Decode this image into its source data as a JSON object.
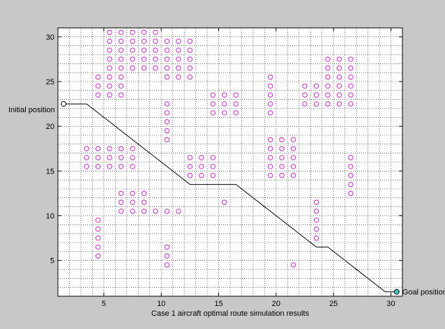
{
  "chart_data": {
    "type": "scatter",
    "xlabel": "Case 1 aircraft optimal route simulation results",
    "ylabel": "",
    "xlim": [
      1,
      31
    ],
    "ylim": [
      1,
      31
    ],
    "xticks": [
      5,
      10,
      15,
      20,
      25,
      30
    ],
    "yticks": [
      5,
      10,
      15,
      20,
      25,
      30
    ],
    "grid": true,
    "grid_style": "dotted",
    "annotations": {
      "start_label": "Initial position",
      "goal_label": "Goal position"
    },
    "start_point": [
      1.5,
      22.5
    ],
    "goal_point": [
      30.5,
      1.5
    ],
    "route": [
      [
        1.5,
        22.5
      ],
      [
        3.5,
        22.5
      ],
      [
        12.5,
        13.5
      ],
      [
        16.5,
        13.5
      ],
      [
        23.5,
        6.5
      ],
      [
        24.5,
        6.5
      ],
      [
        29.5,
        1.5
      ],
      [
        30.5,
        1.5
      ]
    ],
    "obstacle_color": "#e020e0",
    "route_color": "#000000",
    "start_color": "#ffffff",
    "goal_color": "#33cccc",
    "obstacle_groups": [
      {
        "xs": [
          6.5,
          7.5,
          8.5,
          9.5
        ],
        "ys": [
          26.5,
          27.5,
          28.5,
          29.5,
          30.5
        ]
      },
      {
        "xs": [
          5.5
        ],
        "ys": [
          26.5,
          27.5,
          28.5,
          29.5,
          30.5
        ]
      },
      {
        "xs": [
          10.5,
          11.5,
          12.5
        ],
        "ys": [
          25.5,
          26.5,
          27.5,
          28.5,
          29.5
        ]
      },
      {
        "xs": [
          4.5,
          5.5,
          6.5
        ],
        "ys": [
          23.5,
          24.5,
          25.5
        ]
      },
      {
        "xs": [
          10.5
        ],
        "ys": [
          18.5,
          19.5,
          20.5,
          21.5,
          22.5
        ]
      },
      {
        "xs": [
          14.5,
          15.5,
          16.5
        ],
        "ys": [
          21.5,
          22.5,
          23.5
        ]
      },
      {
        "xs": [
          19.5
        ],
        "ys": [
          21.5,
          22.5,
          23.5,
          24.5,
          25.5
        ]
      },
      {
        "xs": [
          22.5,
          23.5
        ],
        "ys": [
          22.5,
          23.5,
          24.5
        ]
      },
      {
        "xs": [
          24.5,
          25.5,
          26.5
        ],
        "ys": [
          22.5,
          23.5,
          24.5,
          25.5,
          26.5,
          27.5
        ]
      },
      {
        "xs": [
          3.5,
          4.5,
          5.5,
          6.5,
          7.5
        ],
        "ys": [
          15.5,
          16.5,
          17.5
        ]
      },
      {
        "xs": [
          12.5,
          13.5,
          14.5
        ],
        "ys": [
          14.5,
          15.5,
          16.5
        ]
      },
      {
        "xs": [
          19.5,
          20.5,
          21.5
        ],
        "ys": [
          14.5,
          15.5,
          16.5,
          17.5,
          18.5
        ]
      },
      {
        "xs": [
          26.5
        ],
        "ys": [
          12.5,
          13.5,
          14.5,
          15.5,
          16.5
        ]
      },
      {
        "xs": [
          6.5,
          7.5,
          8.5
        ],
        "ys": [
          10.5,
          11.5,
          12.5
        ]
      },
      {
        "xs": [
          9.5,
          10.5,
          11.5
        ],
        "ys": [
          10.5
        ]
      },
      {
        "xs": [
          15.5
        ],
        "ys": [
          11.5
        ]
      },
      {
        "xs": [
          23.5
        ],
        "ys": [
          7.5,
          8.5,
          9.5,
          10.5,
          11.5
        ]
      },
      {
        "xs": [
          4.5
        ],
        "ys": [
          5.5,
          6.5,
          7.5,
          8.5,
          9.5
        ]
      },
      {
        "xs": [
          10.5
        ],
        "ys": [
          4.5,
          5.5,
          6.5
        ]
      },
      {
        "xs": [
          21.5
        ],
        "ys": [
          4.5
        ]
      }
    ]
  }
}
